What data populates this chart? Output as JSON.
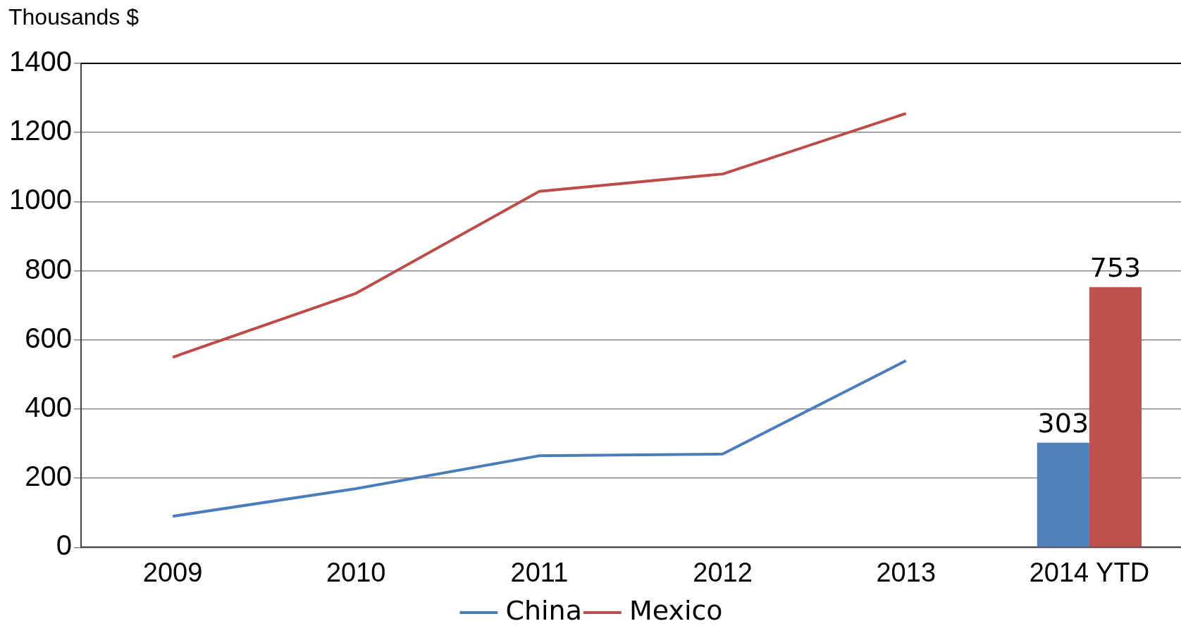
{
  "chart_data": {
    "type": "line",
    "ylabel": "Thousands $",
    "categories": [
      "2009",
      "2010",
      "2011",
      "2012",
      "2013",
      "2014 YTD"
    ],
    "series": [
      {
        "name": "China",
        "color": "#4a7ebb",
        "values": [
          90,
          170,
          265,
          270,
          540,
          null
        ]
      },
      {
        "name": "Mexico",
        "color": "#be4b48",
        "values": [
          550,
          735,
          1030,
          1080,
          1255,
          null
        ]
      },
      {
        "type": "bar",
        "color": "#4f81bd",
        "values": [
          null,
          null,
          null,
          null,
          null,
          303
        ],
        "value_labels": [
          null,
          null,
          null,
          null,
          null,
          "303"
        ]
      },
      {
        "type": "bar",
        "color": "#c0504d",
        "values": [
          null,
          null,
          null,
          null,
          null,
          753
        ],
        "value_labels": [
          null,
          null,
          null,
          null,
          null,
          "753"
        ]
      }
    ],
    "ylim": [
      0,
      1400
    ],
    "yticks": [
      0,
      200,
      400,
      600,
      800,
      1000,
      1200,
      1400
    ],
    "grid": "y",
    "legend": "bottom",
    "marker": "none",
    "line_style": "solid"
  }
}
